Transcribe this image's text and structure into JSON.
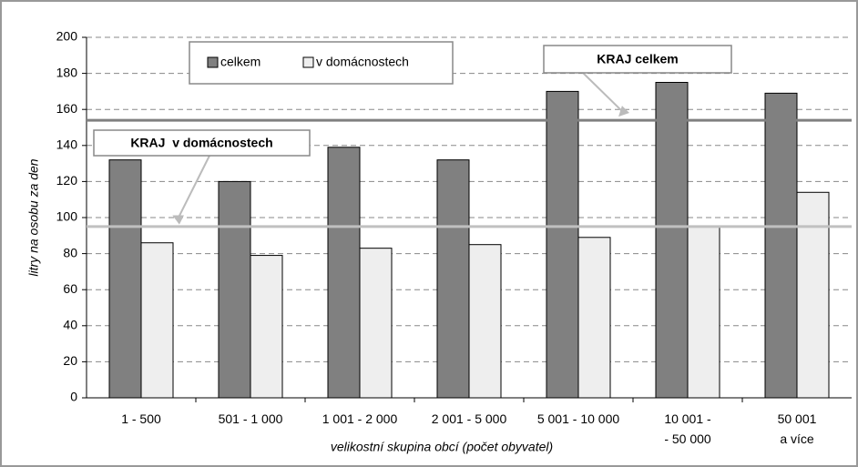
{
  "chart_data": {
    "type": "bar",
    "ylabel": "litry na osobu za den",
    "xlabel": "velikostní skupina obcí (počet obyvatel)",
    "categories": [
      "1 - 500",
      "501 - 1 000",
      "1 001 - 2 000",
      "2 001 - 5 000",
      "5 001 - 10 000",
      "10 001 -\n- 50 000",
      "50 001\na více"
    ],
    "series": [
      {
        "name": "celkem",
        "color": "#808080",
        "values": [
          132,
          120,
          139,
          132,
          170,
          175,
          169
        ]
      },
      {
        "name": "v domácnostech",
        "color": "#eeeeee",
        "values": [
          86,
          79,
          83,
          85,
          89,
          95,
          114
        ]
      }
    ],
    "reference_lines": [
      {
        "name": "KRAJ celkem",
        "value": 154,
        "color": "#808080"
      },
      {
        "name": "KRAJ  v domácnostech",
        "value": 95,
        "color": "#c0c0c0"
      }
    ],
    "ylim": [
      0,
      200
    ],
    "yticks": [
      0,
      20,
      40,
      60,
      80,
      100,
      120,
      140,
      160,
      180,
      200
    ],
    "grid": true
  }
}
